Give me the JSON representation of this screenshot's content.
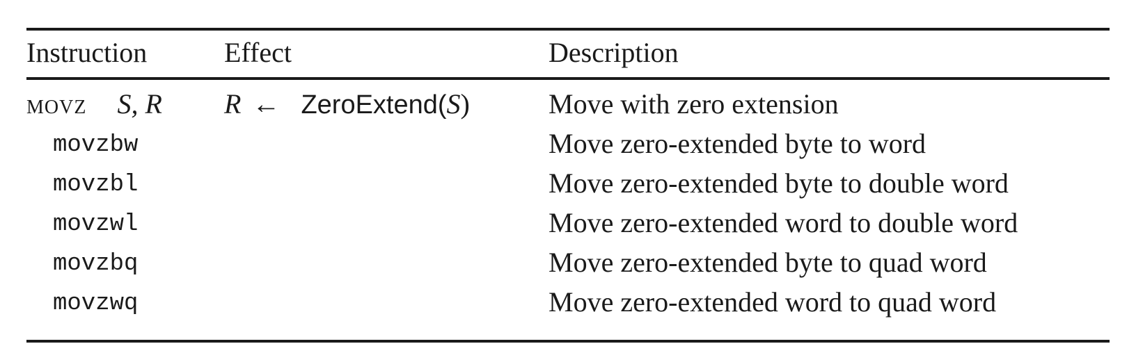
{
  "table": {
    "headers": {
      "instruction": "Instruction",
      "effect": "Effect",
      "description": "Description"
    },
    "main_row": {
      "mnemonic": "movz",
      "operands": "S, R",
      "effect_dest": "R",
      "effect_arrow": "←",
      "effect_fn": "ZeroExtend(",
      "effect_arg": "S",
      "effect_close": ")",
      "description": "Move with zero extension"
    },
    "sub_rows": [
      {
        "instruction": "movzbw",
        "description": "Move zero-extended byte to word"
      },
      {
        "instruction": "movzbl",
        "description": "Move zero-extended byte to double word"
      },
      {
        "instruction": "movzwl",
        "description": "Move zero-extended word to double word"
      },
      {
        "instruction": "movzbq",
        "description": "Move zero-extended byte to quad word"
      },
      {
        "instruction": "movzwq",
        "description": "Move zero-extended word to quad word"
      }
    ]
  }
}
